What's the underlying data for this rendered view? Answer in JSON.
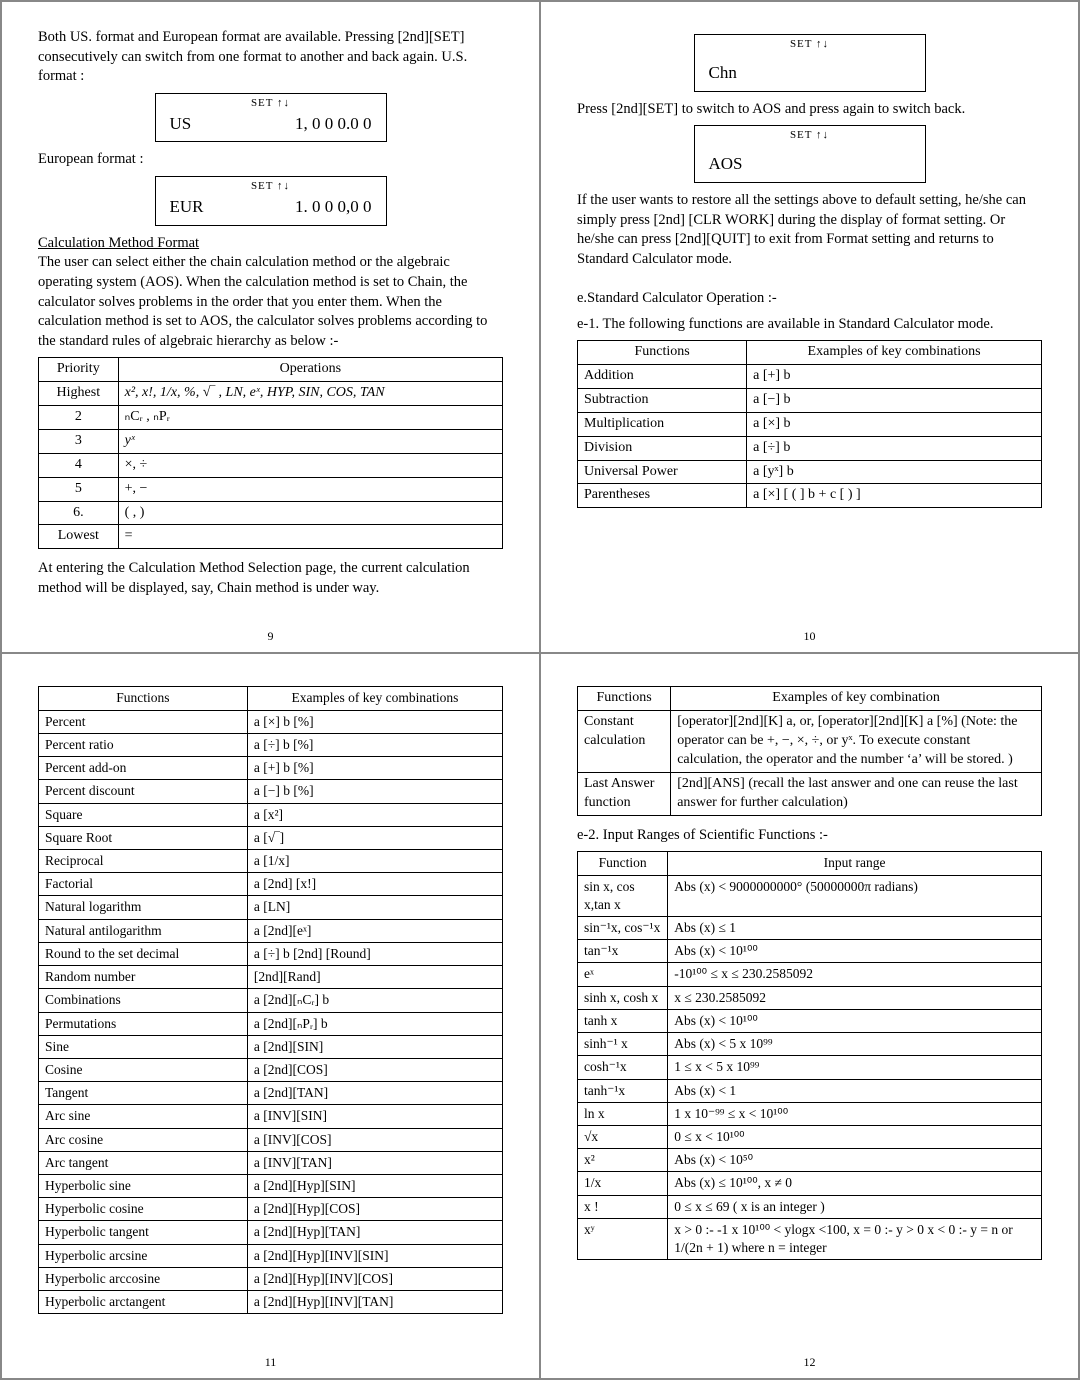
{
  "page9": {
    "intro": "Both US. format and European format are available. Pressing [2nd][SET] consecutively can switch from one format to another and back again. U.S. format :",
    "box_us_top": "SET  ↑↓",
    "box_us_left": "US",
    "box_us_right": "1, 0 0 0.0 0",
    "eur_label": "European format :",
    "box_eur_top": "SET  ↑↓",
    "box_eur_left": "EUR",
    "box_eur_right": "1. 0 0 0,0 0",
    "calc_method_title": "Calculation  Method  Format",
    "calc_method_body": "The user can select either the chain calculation method or the algebraic operating system (AOS). When the calculation method is set to Chain,  the calculator solves problems in the order that you enter them. When the calculation method is set to AOS,  the calculator solves problems according to the standard rules of algebraic hierarchy as below :-",
    "hdr_priority": "Priority",
    "hdr_operations": "Operations",
    "rows": [
      [
        "Highest",
        "x²,  x!,  1/x,  %, √‾ , LN, eˣ, HYP, SIN,  COS,  TAN"
      ],
      [
        "2",
        "ₙCᵣ ,  ₙPᵣ"
      ],
      [
        "3",
        "yˣ"
      ],
      [
        "4",
        "×,  ÷"
      ],
      [
        "5",
        "+,  −"
      ],
      [
        "6.",
        "( ,  )"
      ],
      [
        "Lowest",
        "="
      ]
    ],
    "closing": "At entering the Calculation Method Selection page, the current calculation method will be displayed, say, Chain method is under way.",
    "page": "9"
  },
  "page10": {
    "box_chn_top": "SET  ↑↓",
    "box_chn": "Chn",
    "press_text": "Press [2nd][SET] to switch to AOS and press again to switch back.",
    "box_aos_top": "SET  ↑↓",
    "box_aos": "AOS",
    "restore_text": "If the user wants to restore all the settings above to default setting, he/she can simply press [2nd] [CLR WORK] during the display of format setting. Or he/she can press [2nd][QUIT] to exit from Format setting and returns to  Standard Calculator mode.",
    "e_title": "e.Standard Calculator Operation :-",
    "e1_title": "e-1. The following functions are available in Standard Calculator mode.",
    "hdr_func": "Functions",
    "hdr_ex": "Examples of  key combinations",
    "rows": [
      [
        "Addition",
        "a [+] b"
      ],
      [
        "Subtraction",
        "a [−] b"
      ],
      [
        "Multiplication",
        "a [×] b"
      ],
      [
        "Division",
        "a [÷] b"
      ],
      [
        "Universal Power",
        "a [yˣ] b"
      ],
      [
        "Parentheses",
        "a [×] [ ( ] b + c  [ ) ]"
      ]
    ],
    "page": "10"
  },
  "page11": {
    "hdr_func": "Functions",
    "hdr_ex": "Examples of key combinations",
    "rows": [
      [
        "Percent",
        "a [×] b [%]"
      ],
      [
        "Percent ratio",
        "a [÷] b [%]"
      ],
      [
        "Percent add-on",
        "a [+] b [%]"
      ],
      [
        "Percent discount",
        "a [−] b [%]"
      ],
      [
        "Square",
        "a [x²]"
      ],
      [
        "Square Root",
        "a [√‾]"
      ],
      [
        "Reciprocal",
        "a [1/x]"
      ],
      [
        "Factorial",
        "a [2nd] [x!]"
      ],
      [
        "Natural logarithm",
        "a [LN]"
      ],
      [
        "Natural antilogarithm",
        "a [2nd][eˣ]"
      ],
      [
        "Round to the set decimal",
        "a [÷] b [2nd] [Round]"
      ],
      [
        "Random number",
        "[2nd][Rand]"
      ],
      [
        "Combinations",
        "a [2nd][ₙCᵣ] b"
      ],
      [
        "Permutations",
        "a [2nd][ₙPᵣ] b"
      ],
      [
        "Sine",
        "a [2nd][SIN]"
      ],
      [
        "Cosine",
        "a [2nd][COS]"
      ],
      [
        "Tangent",
        "a [2nd][TAN]"
      ],
      [
        "Arc sine",
        "a [INV][SIN]"
      ],
      [
        "Arc cosine",
        "a [INV][COS]"
      ],
      [
        "Arc tangent",
        "a [INV][TAN]"
      ],
      [
        "Hyperbolic sine",
        "a [2nd][Hyp][SIN]"
      ],
      [
        "Hyperbolic cosine",
        "a [2nd][Hyp][COS]"
      ],
      [
        "Hyperbolic tangent",
        "a [2nd][Hyp][TAN]"
      ],
      [
        "Hyperbolic arcsine",
        "a [2nd][Hyp][INV][SIN]"
      ],
      [
        "Hyperbolic arccosine",
        "a [2nd][Hyp][INV][COS]"
      ],
      [
        "Hyperbolic arctangent",
        "a [2nd][Hyp][INV][TAN]"
      ]
    ],
    "page": "11"
  },
  "page12": {
    "hdr_func_a": "Functions",
    "hdr_ex_a": "Examples of  key combination",
    "rowsA": [
      [
        "Constant calculation",
        "[operator][2nd][K] a, or, [operator][2nd][K] a [%] (Note: the operator can be +, −, ×, ÷, or yˣ. To execute constant calculation, the operator and the number ‘a’ will be stored. )"
      ],
      [
        "Last Answer function",
        "[2nd][ANS] (recall the last answer and one can reuse the last answer for further calculation)"
      ]
    ],
    "e2_title": "e-2. Input Ranges of Scientific Functions :-",
    "hdr_func_b": "Function",
    "hdr_ex_b": "Input range",
    "rowsB": [
      [
        "sin x, cos x,tan x",
        "Abs (x) <  9000000000° (50000000π radians)"
      ],
      [
        "sin⁻¹x, cos⁻¹x",
        "Abs (x) ≤ 1"
      ],
      [
        "tan⁻¹x",
        "Abs (x) < 10¹⁰⁰"
      ],
      [
        "eˣ",
        "-10¹⁰⁰ ≤ x ≤ 230.2585092"
      ],
      [
        "sinh x, cosh x",
        "x ≤ 230.2585092"
      ],
      [
        "tanh x",
        "Abs (x) <  10¹⁰⁰"
      ],
      [
        "sinh⁻¹ x",
        "Abs (x) <  5 x 10⁹⁹"
      ],
      [
        "cosh⁻¹x",
        "1 ≤ x  <  5 x 10⁹⁹"
      ],
      [
        "tanh⁻¹x",
        "Abs (x)  <  1"
      ],
      [
        "ln x",
        "1 x 10⁻⁹⁹ ≤ x <  10¹⁰⁰"
      ],
      [
        "√x",
        "0 ≤ x < 10¹⁰⁰"
      ],
      [
        "x²",
        "Abs (x)  <  10⁵⁰"
      ],
      [
        "1/x",
        "Abs (x)  ≤  10¹⁰⁰,  x ≠ 0"
      ],
      [
        "x !",
        "0 ≤ x ≤ 69  ( x is an integer )"
      ],
      [
        "xʸ",
        "x > 0 :- -1 x 10¹⁰⁰ < ylogx <100, x = 0 :- y > 0 x < 0 :- y = n or 1/(2n + 1) where n = integer"
      ]
    ],
    "page": "12"
  }
}
